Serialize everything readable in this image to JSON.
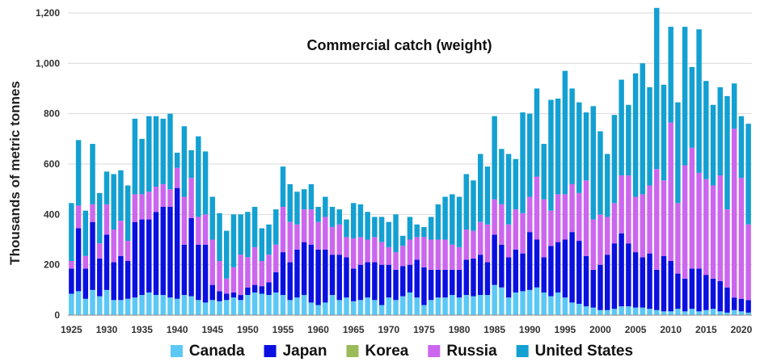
{
  "chart_data": {
    "type": "bar",
    "stacked": true,
    "title": "Commercial catch (weight)",
    "ylabel": "Thousands of metric tonnes",
    "xlabel": "",
    "ylim": [
      0,
      1200
    ],
    "yticks": [
      "0",
      "200",
      "400",
      "600",
      "800",
      "1,000",
      "1,200"
    ],
    "ytick_values": [
      0,
      200,
      400,
      600,
      800,
      1000,
      1200
    ],
    "xtick_labels": [
      "1925",
      "1930",
      "1935",
      "1940",
      "1945",
      "1950",
      "1955",
      "1960",
      "1965",
      "1970",
      "1975",
      "1980",
      "1985",
      "1990",
      "1995",
      "2000",
      "2005",
      "2010",
      "2015",
      "2020"
    ],
    "legend_position": "bottom",
    "grid": true,
    "categories": [
      1925,
      1926,
      1927,
      1928,
      1929,
      1930,
      1931,
      1932,
      1933,
      1934,
      1935,
      1936,
      1937,
      1938,
      1939,
      1940,
      1941,
      1942,
      1943,
      1944,
      1945,
      1946,
      1947,
      1948,
      1949,
      1950,
      1951,
      1952,
      1953,
      1954,
      1955,
      1956,
      1957,
      1958,
      1959,
      1960,
      1961,
      1962,
      1963,
      1964,
      1965,
      1966,
      1967,
      1968,
      1969,
      1970,
      1971,
      1972,
      1973,
      1974,
      1975,
      1976,
      1977,
      1978,
      1979,
      1980,
      1981,
      1982,
      1983,
      1984,
      1985,
      1986,
      1987,
      1988,
      1989,
      1990,
      1991,
      1992,
      1993,
      1994,
      1995,
      1996,
      1997,
      1998,
      1999,
      2000,
      2001,
      2002,
      2003,
      2004,
      2005,
      2006,
      2007,
      2008,
      2009,
      2010,
      2011,
      2012,
      2013,
      2014,
      2015,
      2016,
      2017,
      2018,
      2019,
      2020,
      2021
    ],
    "series": [
      {
        "name": "Canada",
        "color": "#5bc8f5",
        "values": [
          85,
          95,
          65,
          100,
          75,
          100,
          60,
          60,
          65,
          70,
          80,
          90,
          80,
          80,
          70,
          65,
          80,
          75,
          60,
          50,
          60,
          55,
          60,
          70,
          60,
          80,
          90,
          85,
          80,
          90,
          80,
          60,
          70,
          80,
          50,
          40,
          50,
          80,
          60,
          70,
          55,
          60,
          70,
          60,
          40,
          70,
          60,
          75,
          90,
          70,
          40,
          60,
          70,
          70,
          80,
          70,
          80,
          75,
          80,
          80,
          120,
          110,
          70,
          90,
          95,
          100,
          110,
          90,
          75,
          90,
          70,
          50,
          45,
          35,
          30,
          20,
          20,
          25,
          35,
          35,
          30,
          30,
          25,
          20,
          15,
          15,
          25,
          15,
          25,
          15,
          20,
          25,
          15,
          10,
          20,
          15,
          10
        ]
      },
      {
        "name": "Japan",
        "color": "#0a10e0",
        "values": [
          100,
          250,
          120,
          270,
          150,
          220,
          150,
          175,
          150,
          300,
          300,
          290,
          330,
          350,
          360,
          440,
          200,
          310,
          220,
          230,
          60,
          40,
          25,
          20,
          20,
          30,
          30,
          30,
          50,
          80,
          170,
          150,
          190,
          210,
          230,
          220,
          210,
          160,
          180,
          160,
          130,
          140,
          140,
          150,
          160,
          130,
          120,
          120,
          110,
          150,
          150,
          120,
          110,
          110,
          100,
          110,
          140,
          150,
          160,
          130,
          200,
          170,
          160,
          170,
          150,
          230,
          190,
          140,
          200,
          200,
          230,
          280,
          250,
          200,
          150,
          180,
          220,
          260,
          290,
          250,
          220,
          200,
          220,
          160,
          220,
          200,
          140,
          130,
          160,
          170,
          140,
          120,
          120,
          100,
          50,
          50,
          50
        ]
      },
      {
        "name": "Korea",
        "color": "#9bbb59",
        "values": [
          0,
          0,
          0,
          0,
          0,
          0,
          0,
          0,
          0,
          0,
          0,
          0,
          0,
          0,
          0,
          0,
          0,
          0,
          0,
          0,
          0,
          0,
          0,
          0,
          0,
          0,
          0,
          0,
          0,
          0,
          0,
          0,
          0,
          0,
          0,
          0,
          0,
          0,
          0,
          0,
          0,
          0,
          0,
          0,
          0,
          0,
          0,
          0,
          0,
          0,
          0,
          0,
          0,
          0,
          0,
          0,
          0,
          0,
          0,
          0,
          0,
          0,
          0,
          0,
          0,
          0,
          0,
          0,
          0,
          0,
          0,
          0,
          0,
          0,
          0,
          0,
          0,
          0,
          0,
          0,
          0,
          0,
          0,
          0,
          0,
          0,
          0,
          0,
          0,
          0,
          0,
          0,
          0,
          0,
          0,
          0,
          0
        ]
      },
      {
        "name": "Russia",
        "color": "#cc66ee",
        "values": [
          30,
          90,
          50,
          70,
          60,
          120,
          130,
          140,
          80,
          110,
          100,
          110,
          100,
          90,
          70,
          80,
          190,
          160,
          110,
          120,
          180,
          120,
          60,
          100,
          160,
          120,
          150,
          100,
          110,
          110,
          180,
          160,
          100,
          130,
          140,
          110,
          130,
          110,
          120,
          80,
          120,
          110,
          90,
          100,
          90,
          70,
          70,
          80,
          100,
          90,
          120,
          120,
          120,
          120,
          100,
          90,
          120,
          110,
          130,
          150,
          140,
          160,
          130,
          160,
          160,
          140,
          250,
          230,
          140,
          190,
          180,
          190,
          190,
          300,
          200,
          200,
          150,
          160,
          230,
          270,
          220,
          250,
          270,
          400,
          300,
          550,
          280,
          450,
          480,
          380,
          380,
          370,
          420,
          310,
          670,
          480,
          300
        ]
      },
      {
        "name": "United States",
        "color": "#13a0d2",
        "values": [
          230,
          260,
          180,
          240,
          200,
          130,
          220,
          200,
          220,
          300,
          220,
          300,
          280,
          260,
          300,
          60,
          280,
          110,
          320,
          250,
          170,
          190,
          190,
          210,
          160,
          180,
          160,
          130,
          120,
          140,
          160,
          150,
          130,
          80,
          100,
          60,
          80,
          80,
          60,
          70,
          140,
          130,
          110,
          80,
          100,
          100,
          150,
          40,
          90,
          50,
          40,
          90,
          140,
          170,
          200,
          200,
          220,
          200,
          270,
          230,
          330,
          220,
          280,
          200,
          400,
          330,
          350,
          220,
          440,
          380,
          490,
          380,
          360,
          270,
          450,
          330,
          250,
          350,
          380,
          280,
          490,
          520,
          390,
          640,
          380,
          380,
          400,
          550,
          320,
          570,
          390,
          320,
          350,
          450,
          180,
          245,
          400
        ]
      }
    ]
  }
}
